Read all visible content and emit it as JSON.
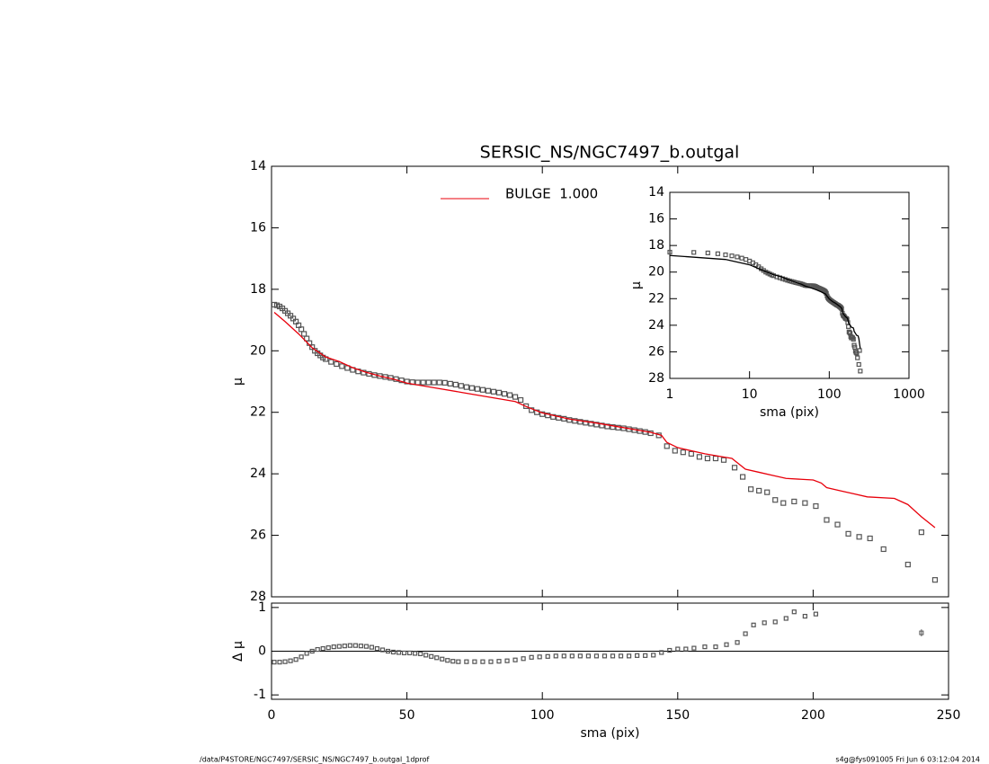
{
  "chart_data": [
    {
      "type": "scatter",
      "title": "SERSIC_NS/NGC7497_b.outgal",
      "ylabel": "μ",
      "xlim": [
        0,
        250
      ],
      "xticks": [
        0,
        50,
        100,
        150,
        200,
        250
      ],
      "ylim": [
        14,
        28
      ],
      "yticks": [
        14,
        16,
        18,
        20,
        22,
        24,
        26,
        28
      ],
      "y_inverted": true,
      "grid": false,
      "marker_color": "#555555",
      "legend": "top",
      "x": [
        1,
        2,
        3,
        4,
        5,
        6,
        7,
        8,
        9,
        10,
        11,
        12,
        13,
        14,
        15,
        16,
        17,
        18,
        19,
        20,
        22,
        24,
        26,
        28,
        30,
        32,
        34,
        36,
        38,
        40,
        42,
        44,
        46,
        48,
        50,
        52,
        54,
        56,
        58,
        60,
        62,
        64,
        66,
        68,
        70,
        72,
        74,
        76,
        78,
        80,
        82,
        84,
        86,
        88,
        90,
        92,
        94,
        96,
        98,
        100,
        102,
        104,
        106,
        108,
        110,
        112,
        114,
        116,
        118,
        120,
        122,
        124,
        126,
        128,
        130,
        132,
        134,
        136,
        138,
        140,
        143,
        146,
        149,
        152,
        155,
        158,
        161,
        164,
        167,
        171,
        174,
        177,
        180,
        183,
        186,
        189,
        193,
        197,
        201,
        205,
        209,
        213,
        217,
        221,
        226,
        235,
        240,
        245
      ],
      "values": [
        18.5,
        18.52,
        18.56,
        18.62,
        18.7,
        18.78,
        18.86,
        18.95,
        19.05,
        19.17,
        19.3,
        19.45,
        19.6,
        19.75,
        19.88,
        20.0,
        20.08,
        20.15,
        20.22,
        20.27,
        20.36,
        20.43,
        20.5,
        20.56,
        20.62,
        20.67,
        20.71,
        20.75,
        20.79,
        20.82,
        20.85,
        20.88,
        20.92,
        20.96,
        21.0,
        21.02,
        21.03,
        21.03,
        21.03,
        21.03,
        21.03,
        21.04,
        21.07,
        21.1,
        21.14,
        21.18,
        21.21,
        21.24,
        21.27,
        21.3,
        21.33,
        21.36,
        21.4,
        21.44,
        21.5,
        21.6,
        21.8,
        21.93,
        22.0,
        22.06,
        22.1,
        22.15,
        22.18,
        22.21,
        22.25,
        22.28,
        22.31,
        22.34,
        22.37,
        22.4,
        22.43,
        22.46,
        22.48,
        22.5,
        22.52,
        22.55,
        22.58,
        22.61,
        22.64,
        22.68,
        22.75,
        23.1,
        23.25,
        23.3,
        23.35,
        23.45,
        23.5,
        23.5,
        23.55,
        23.8,
        24.1,
        24.5,
        24.55,
        24.6,
        24.85,
        24.95,
        24.9,
        24.95,
        25.05,
        25.5,
        25.65,
        25.95,
        26.05,
        26.1,
        26.45,
        26.95,
        25.9,
        27.45
      ],
      "series": [
        {
          "name": "BULGE  1.000",
          "color": "#e8000b",
          "x": [
            1,
            5,
            10,
            15,
            20,
            25,
            30,
            35,
            40,
            45,
            50,
            60,
            70,
            80,
            90,
            95,
            100,
            110,
            120,
            130,
            140,
            144,
            146,
            150,
            160,
            170,
            175,
            180,
            185,
            190,
            200,
            203,
            205,
            210,
            215,
            220,
            230,
            235,
            240,
            245
          ],
          "values": [
            18.75,
            19.05,
            19.45,
            19.9,
            20.2,
            20.35,
            20.55,
            20.7,
            20.82,
            20.92,
            21.05,
            21.2,
            21.35,
            21.5,
            21.65,
            21.85,
            22.02,
            22.22,
            22.35,
            22.5,
            22.65,
            22.75,
            22.98,
            23.15,
            23.35,
            23.5,
            23.85,
            23.95,
            24.05,
            24.15,
            24.2,
            24.3,
            24.45,
            24.55,
            24.65,
            24.75,
            24.8,
            25.0,
            25.4,
            25.75
          ]
        }
      ]
    },
    {
      "type": "residual",
      "ylabel": "Δ μ",
      "xlabel": "sma (pix)",
      "xlim": [
        0,
        250
      ],
      "xticks": [
        0,
        50,
        100,
        150,
        200,
        250
      ],
      "ylim": [
        -1.1,
        1.1
      ],
      "yticks": [
        -1,
        0,
        1
      ],
      "zero_line": true,
      "marker_color": "#555555",
      "x": [
        1,
        3,
        5,
        7,
        9,
        11,
        13,
        15,
        17,
        19,
        21,
        23,
        25,
        27,
        29,
        31,
        33,
        35,
        37,
        39,
        41,
        43,
        45,
        47,
        49,
        51,
        53,
        55,
        57,
        59,
        61,
        63,
        65,
        67,
        69,
        72,
        75,
        78,
        81,
        84,
        87,
        90,
        93,
        96,
        99,
        102,
        105,
        108,
        111,
        114,
        117,
        120,
        123,
        126,
        129,
        132,
        135,
        138,
        141,
        144,
        147,
        150,
        153,
        156,
        160,
        164,
        168,
        172,
        175,
        178,
        182,
        186,
        190,
        193,
        197,
        201
      ],
      "values": [
        -0.25,
        -0.25,
        -0.24,
        -0.22,
        -0.19,
        -0.13,
        -0.05,
        0.0,
        0.04,
        0.06,
        0.08,
        0.1,
        0.11,
        0.12,
        0.13,
        0.13,
        0.12,
        0.11,
        0.09,
        0.06,
        0.03,
        0.0,
        -0.02,
        -0.03,
        -0.04,
        -0.04,
        -0.05,
        -0.06,
        -0.09,
        -0.12,
        -0.15,
        -0.18,
        -0.21,
        -0.23,
        -0.24,
        -0.24,
        -0.24,
        -0.24,
        -0.24,
        -0.23,
        -0.22,
        -0.2,
        -0.17,
        -0.14,
        -0.13,
        -0.12,
        -0.11,
        -0.11,
        -0.11,
        -0.11,
        -0.11,
        -0.11,
        -0.11,
        -0.11,
        -0.11,
        -0.11,
        -0.1,
        -0.1,
        -0.09,
        -0.03,
        0.02,
        0.05,
        0.05,
        0.07,
        0.1,
        0.1,
        0.15,
        0.2,
        0.4,
        0.6,
        0.65,
        0.67,
        0.75,
        0.9,
        0.8,
        0.85
      ],
      "error_bar": {
        "x": 240,
        "value": 0.42,
        "error": 0.08
      }
    },
    {
      "type": "inset",
      "xlabel": "sma (pix)",
      "ylabel": "μ",
      "log_x": true,
      "xlim": [
        1,
        1000
      ],
      "xticks": [
        1,
        10,
        100,
        1000
      ],
      "ylim": [
        14,
        28
      ],
      "yticks": [
        14,
        16,
        18,
        20,
        22,
        24,
        26,
        28
      ],
      "y_inverted": true,
      "marker_color": "#555555",
      "line_color": "#000000"
    }
  ],
  "footer": {
    "left": "/data/P4STORE/NGC7497/SERSIC_NS/NGC7497_b.outgal_1dprof",
    "right": "s4g@fys091005  Fri Jun  6 03:12:04 2014"
  }
}
